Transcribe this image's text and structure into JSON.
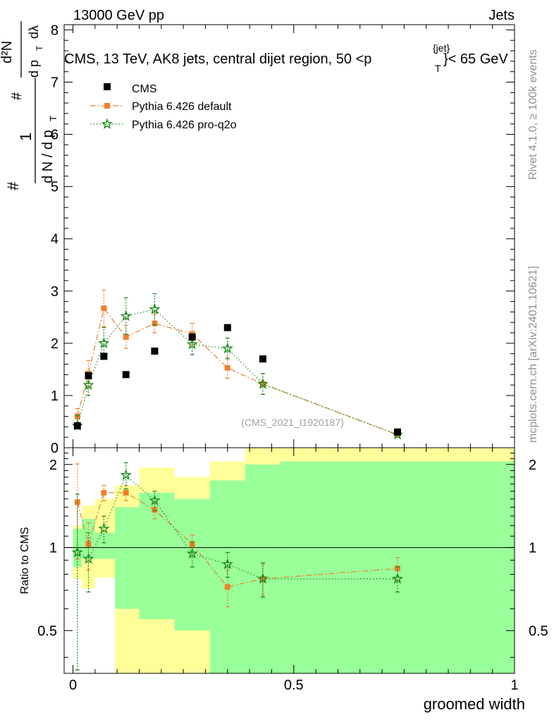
{
  "header": {
    "beam": "13000 GeV pp",
    "process": "Jets"
  },
  "side_labels": {
    "rivet": "Rivet 4.1.0, ≥ 100k events",
    "mcplots": "mcplots.cern.ch [arXiv:2401.10621]"
  },
  "chart_data": {
    "type": "scatter",
    "title": "CMS, 13 TeV, AK8 jets, central dijet region, 50 <p",
    "title_sup": "{jet}",
    "title_sub": "T",
    "title_end": "}< 65 GeV",
    "analysis_label": "(CMS_2021_I1920187)",
    "xlabel": "groomed width",
    "ylabel": "1/dN/dpT # d²N/dpT dλ",
    "ratio_ylabel": "Ratio to CMS",
    "xlim": [
      -0.02,
      1.0
    ],
    "ylim": [
      0,
      8.1
    ],
    "ratio_ylim": [
      0.35,
      2.3
    ],
    "x_ticks": [
      0,
      0.5,
      1
    ],
    "x_tick_labels": [
      "0",
      "0.5",
      "1"
    ],
    "y_ticks": [
      0,
      1,
      2,
      3,
      4,
      5,
      6,
      7,
      8
    ],
    "y_tick_labels": [
      "0",
      "1",
      "2",
      "3",
      "4",
      "5",
      "6",
      "7",
      "8"
    ],
    "ratio_ticks": [
      0.5,
      1,
      2
    ],
    "ratio_tick_labels": [
      "0.5",
      "1",
      "2"
    ],
    "bins": [
      0,
      0.02,
      0.05,
      0.095,
      0.15,
      0.23,
      0.31,
      0.39,
      0.47,
      1.0
    ],
    "band_green": [
      [
        0.85,
        1.17
      ],
      [
        0.91,
        1.27
      ],
      [
        0.91,
        1.13
      ],
      [
        0.6,
        1.4
      ],
      [
        0.55,
        1.58
      ],
      [
        0.5,
        1.5
      ],
      [
        0.3,
        1.75
      ],
      [
        0.3,
        2.0
      ],
      [
        0.3,
        2.05
      ]
    ],
    "band_yellow": [
      [
        0.77,
        1.2
      ],
      [
        0.71,
        1.42
      ],
      [
        0.78,
        1.5
      ],
      [
        0.3,
        1.68
      ],
      [
        0.3,
        1.95
      ],
      [
        0.3,
        1.8
      ],
      [
        0.2,
        2.05
      ],
      [
        0.2,
        2.3
      ],
      [
        0.2,
        2.3
      ]
    ],
    "series": [
      {
        "name": "CMS",
        "color": "#000000",
        "marker": "square",
        "x": [
          0.01,
          0.035,
          0.07,
          0.12,
          0.185,
          0.27,
          0.35,
          0.43,
          0.735
        ],
        "y": [
          0.42,
          1.38,
          1.75,
          1.4,
          1.85,
          2.12,
          2.3,
          1.7,
          0.3
        ]
      },
      {
        "name": "Pythia 6.426 default",
        "color": "#f0802e",
        "marker": "square",
        "line": "dashdot",
        "x": [
          0.01,
          0.035,
          0.07,
          0.12,
          0.185,
          0.27,
          0.35,
          0.43,
          0.735
        ],
        "y": [
          0.6,
          1.42,
          2.67,
          2.12,
          2.38,
          2.18,
          1.53,
          1.22,
          0.25
        ],
        "yerr": [
          0.15,
          0.25,
          0.35,
          0.22,
          0.18,
          0.2,
          0.2,
          0.2,
          0.05
        ],
        "ratio": [
          1.46,
          1.03,
          1.58,
          1.58,
          1.37,
          1.03,
          0.72,
          0.77,
          0.84
        ],
        "ratio_err": [
          0.55,
          0.2,
          0.1,
          0.1,
          0.1,
          0.08,
          0.11,
          0.1,
          0.08
        ]
      },
      {
        "name": "Pythia 6.426 pro-q2o",
        "color": "#1a8a1a",
        "marker": "star",
        "line": "dotted",
        "x": [
          0.01,
          0.035,
          0.07,
          0.12,
          0.185,
          0.27,
          0.35,
          0.43,
          0.735
        ],
        "y": [
          0.42,
          1.2,
          2.0,
          2.52,
          2.65,
          1.98,
          1.9,
          1.22,
          0.25
        ],
        "yerr": [
          0.2,
          0.2,
          0.3,
          0.35,
          0.3,
          0.2,
          0.2,
          0.2,
          0.05
        ],
        "ratio": [
          0.96,
          0.91,
          1.17,
          1.83,
          1.48,
          0.95,
          0.87,
          0.77,
          0.77
        ],
        "ratio_err": [
          0.6,
          0.22,
          0.13,
          0.2,
          0.12,
          0.1,
          0.09,
          0.11,
          0.08
        ]
      }
    ]
  }
}
